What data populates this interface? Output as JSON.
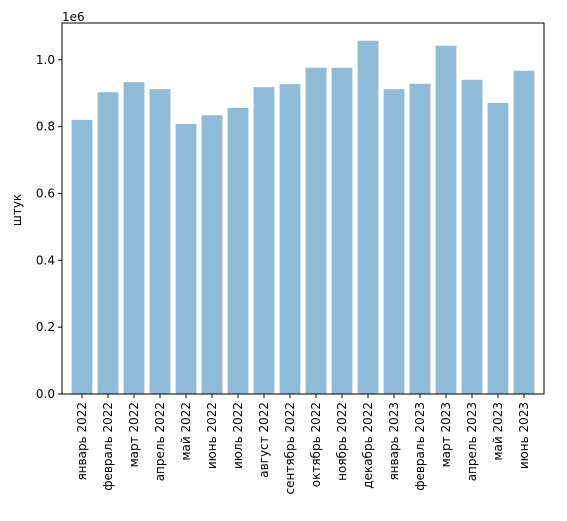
{
  "chart_data": {
    "type": "bar",
    "categories": [
      "январь 2022",
      "февраль 2022",
      "март 2022",
      "апрель 2022",
      "май 2022",
      "июнь 2022",
      "июль 2022",
      "август 2022",
      "сентябрь 2022",
      "октябрь 2022",
      "ноябрь 2022",
      "декабрь 2022",
      "январь 2023",
      "февраль 2023",
      "март 2023",
      "апрель 2023",
      "май 2023",
      "июнь 2023"
    ],
    "values": [
      820000,
      903000,
      933000,
      912000,
      808000,
      834000,
      856000,
      918000,
      927000,
      976000,
      976000,
      1057000,
      912000,
      928000,
      1042000,
      940000,
      871000,
      967000
    ],
    "ylabel": "штук",
    "xlabel": "",
    "ylim": [
      0,
      1110000
    ],
    "y_ticks": [
      0,
      200000,
      400000,
      600000,
      800000,
      1000000
    ],
    "y_tick_labels": [
      "0.0",
      "0.2",
      "0.4",
      "0.6",
      "0.8",
      "1.0"
    ],
    "y_offset_label": "1e6",
    "bar_color": "#8fbbd9",
    "grid": false
  }
}
